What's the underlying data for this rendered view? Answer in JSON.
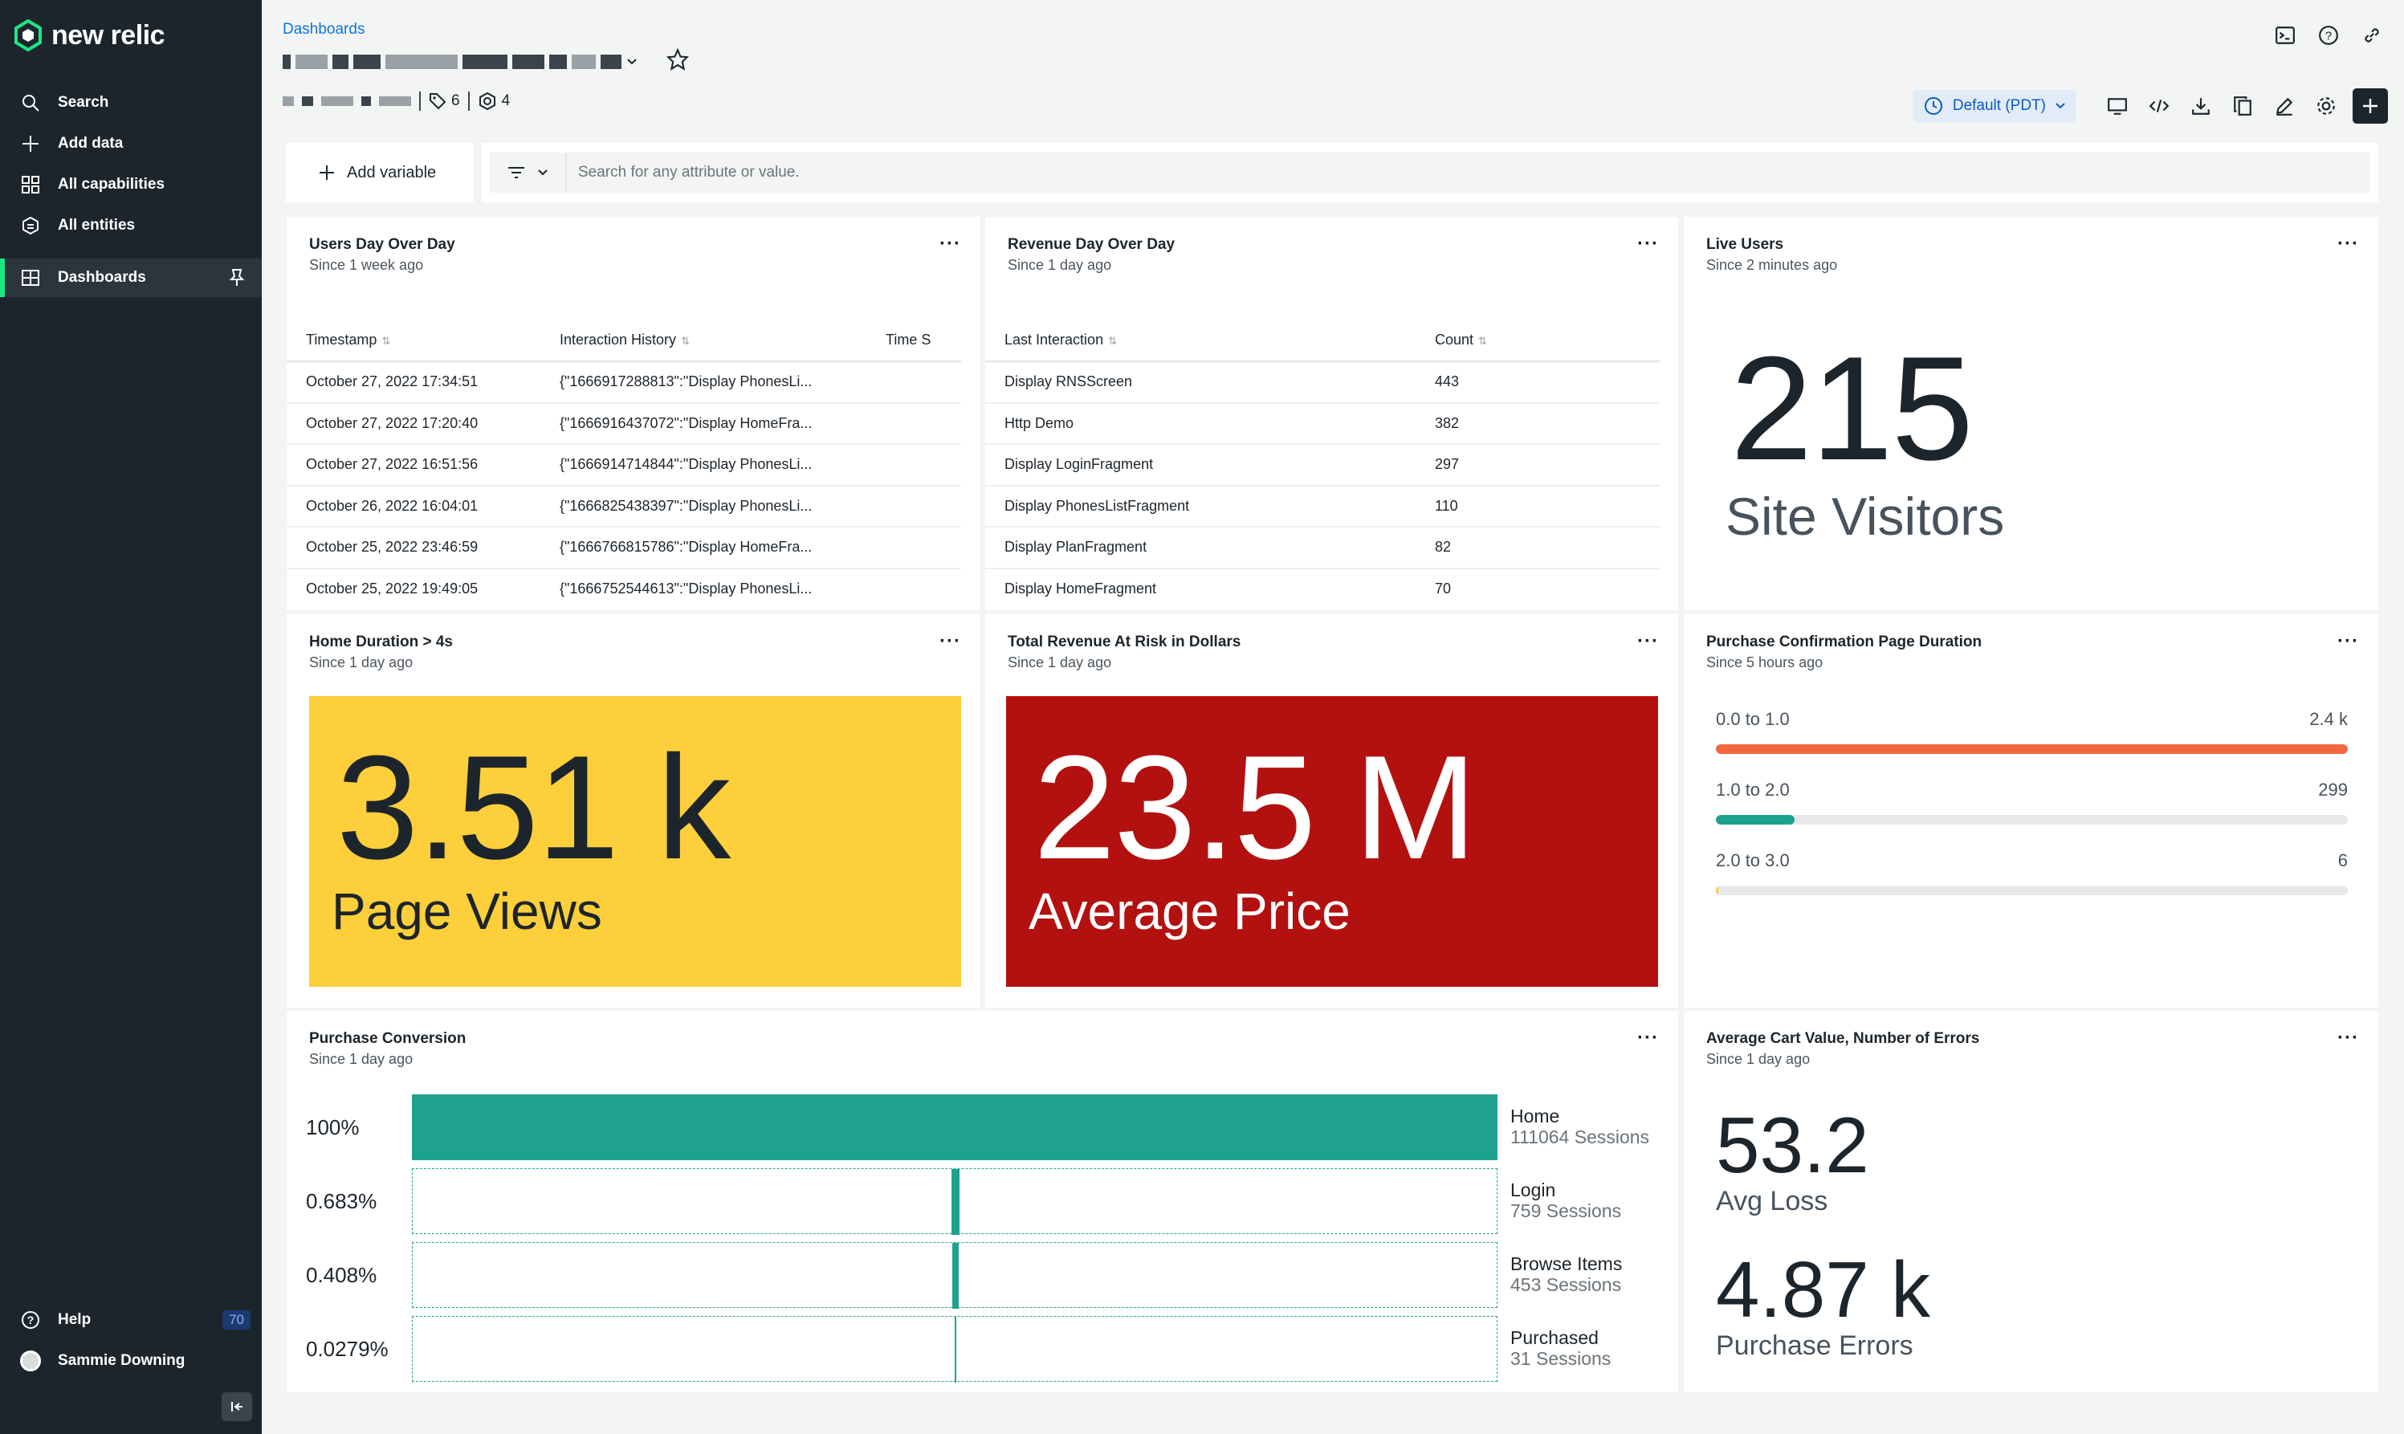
{
  "app": {
    "brand": "new relic"
  },
  "sidebar": {
    "items": [
      {
        "label": "Search",
        "icon": "search-icon"
      },
      {
        "label": "Add data",
        "icon": "plus-icon"
      },
      {
        "label": "All capabilities",
        "icon": "grid-icon"
      },
      {
        "label": "All entities",
        "icon": "entities-icon"
      },
      {
        "label": "Dashboards",
        "icon": "dashboard-icon",
        "active": true
      }
    ],
    "help_label": "Help",
    "help_badge": "70",
    "user_name": "Sammie Downing"
  },
  "header": {
    "breadcrumb": "Dashboards",
    "tags_count": "6",
    "entities_count": "4",
    "timezone_label": "Default (PDT)"
  },
  "filter": {
    "add_variable_label": "Add variable",
    "search_placeholder": "Search for any attribute or value."
  },
  "widgets": {
    "users_day": {
      "title": "Users Day Over Day",
      "subtitle": "Since 1 week ago",
      "columns": [
        "Timestamp",
        "Interaction History",
        "Time S"
      ],
      "rows": [
        [
          "October 27, 2022 17:34:51",
          "{\"1666917288813\":\"Display PhonesLi...",
          ""
        ],
        [
          "October 27, 2022 17:20:40",
          "{\"1666916437072\":\"Display HomeFra...",
          ""
        ],
        [
          "October 27, 2022 16:51:56",
          "{\"1666914714844\":\"Display PhonesLi...",
          ""
        ],
        [
          "October 26, 2022 16:04:01",
          "{\"1666825438397\":\"Display PhonesLi...",
          ""
        ],
        [
          "October 25, 2022 23:46:59",
          "{\"1666766815786\":\"Display HomeFra...",
          ""
        ],
        [
          "October 25, 2022 19:49:05",
          "{\"1666752544613\":\"Display PhonesLi...",
          ""
        ]
      ]
    },
    "revenue_day": {
      "title": "Revenue Day Over Day",
      "subtitle": "Since 1 day ago",
      "columns": [
        "Last Interaction",
        "Count"
      ],
      "rows": [
        [
          "Display RNSScreen",
          "443"
        ],
        [
          "Http Demo",
          "382"
        ],
        [
          "Display LoginFragment",
          "297"
        ],
        [
          "Display PhonesListFragment",
          "110"
        ],
        [
          "Display PlanFragment",
          "82"
        ],
        [
          "Display HomeFragment",
          "70"
        ]
      ]
    },
    "live_users": {
      "title": "Live Users",
      "subtitle": "Since 2 minutes ago",
      "value": "215",
      "label": "Site Visitors"
    },
    "home_duration": {
      "title": "Home Duration > 4s",
      "subtitle": "Since 1 day ago",
      "value": "3.51 k",
      "label": "Page Views",
      "color": "#fdcf3a"
    },
    "revenue_risk": {
      "title": "Total Revenue At Risk in Dollars",
      "subtitle": "Since 1 day ago",
      "value": "23.5 M",
      "label": "Average Price",
      "color": "#b31110"
    },
    "purchase_duration": {
      "title": "Purchase Confirmation Page Duration",
      "subtitle": "Since 5 hours ago",
      "bars": [
        {
          "label": "0.0 to 1.0",
          "value_label": "2.4 k",
          "value": 2400,
          "color": "#f26640"
        },
        {
          "label": "1.0 to 2.0",
          "value_label": "299",
          "value": 299,
          "color": "#1ea28e"
        },
        {
          "label": "2.0 to 3.0",
          "value_label": "6",
          "value": 6,
          "color": "#fdcf3a"
        }
      ]
    },
    "purchase_conversion": {
      "title": "Purchase Conversion",
      "subtitle": "Since 1 day ago",
      "steps": [
        {
          "pct": "100%",
          "name": "Home",
          "sessions": "111064 Sessions",
          "fraction": 1.0
        },
        {
          "pct": "0.683%",
          "name": "Login",
          "sessions": "759 Sessions",
          "fraction": 0.00683
        },
        {
          "pct": "0.408%",
          "name": "Browse Items",
          "sessions": "453 Sessions",
          "fraction": 0.00408
        },
        {
          "pct": "0.0279%",
          "name": "Purchased",
          "sessions": "31 Sessions",
          "fraction": 0.000279
        }
      ]
    },
    "cart_errors": {
      "title": "Average Cart Value, Number of Errors",
      "subtitle": "Since 1 day ago",
      "value1": "53.2",
      "label1": "Avg Loss",
      "value2": "4.87 k",
      "label2": "Purchase Errors"
    }
  }
}
